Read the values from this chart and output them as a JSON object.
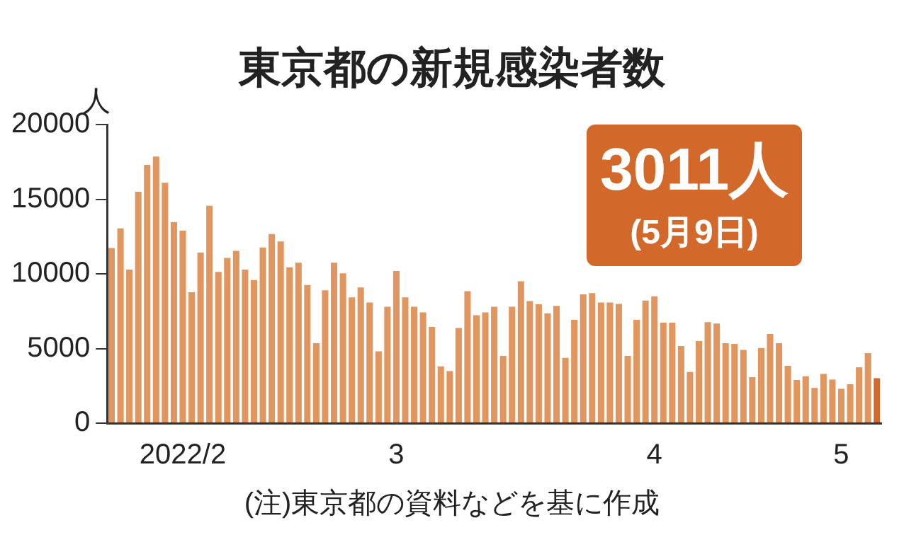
{
  "chart_data": {
    "type": "bar",
    "title": "東京都の新規感染者数",
    "ylabel": "人",
    "categories": [
      null,
      null,
      null,
      null,
      null,
      null,
      null,
      null,
      "2022/2",
      null,
      null,
      null,
      null,
      null,
      null,
      null,
      null,
      null,
      null,
      null,
      null,
      null,
      null,
      null,
      null,
      null,
      null,
      null,
      null,
      null,
      null,
      null,
      "3",
      null,
      null,
      null,
      null,
      null,
      null,
      null,
      null,
      null,
      null,
      null,
      null,
      null,
      null,
      null,
      null,
      null,
      null,
      null,
      null,
      null,
      null,
      null,
      null,
      null,
      null,
      null,
      null,
      "4",
      null,
      null,
      null,
      null,
      null,
      null,
      null,
      null,
      null,
      null,
      null,
      null,
      null,
      null,
      null,
      null,
      null,
      null,
      null,
      null,
      "5",
      null,
      null,
      null,
      null
    ],
    "values": [
      11730,
      13050,
      10280,
      15500,
      17300,
      17860,
      16100,
      13460,
      12890,
      8770,
      11420,
      14560,
      10130,
      11070,
      11540,
      10280,
      9590,
      11760,
      12670,
      12170,
      10440,
      10750,
      9250,
      5350,
      8900,
      10750,
      10030,
      8430,
      9090,
      8080,
      4810,
      7800,
      10190,
      8430,
      7800,
      7420,
      6450,
      3800,
      3490,
      6380,
      8840,
      7230,
      7420,
      7800,
      4500,
      7800,
      9500,
      8180,
      7960,
      7360,
      7860,
      4370,
      6920,
      8620,
      8710,
      8080,
      8080,
      7990,
      4500,
      6920,
      8210,
      8490,
      6730,
      6730,
      5160,
      3430,
      5500,
      6760,
      6670,
      5350,
      5310,
      4910,
      3080,
      5030,
      5970,
      5350,
      3840,
      2890,
      3140,
      2360,
      3300,
      2920,
      2300,
      2610,
      3740,
      4690,
      3011
    ],
    "colors": [
      "#e0965e",
      "#e0965e",
      "#e0965e",
      "#e0965e",
      "#e0965e",
      "#e0965e",
      "#e0965e",
      "#e0965e",
      "#e0965e",
      "#e0965e",
      "#e0965e",
      "#e0965e",
      "#e0965e",
      "#e0965e",
      "#e0965e",
      "#e0965e",
      "#e0965e",
      "#e0965e",
      "#e0965e",
      "#e0965e",
      "#e0965e",
      "#e0965e",
      "#e0965e",
      "#e0965e",
      "#e0965e",
      "#e0965e",
      "#e0965e",
      "#e0965e",
      "#e0965e",
      "#e0965e",
      "#e0965e",
      "#e0965e",
      "#e0965e",
      "#e0965e",
      "#e0965e",
      "#e0965e",
      "#e0965e",
      "#e0965e",
      "#e0965e",
      "#e0965e",
      "#e0965e",
      "#e0965e",
      "#e0965e",
      "#e0965e",
      "#e0965e",
      "#e0965e",
      "#e0965e",
      "#e0965e",
      "#e0965e",
      "#e0965e",
      "#e0965e",
      "#e0965e",
      "#e0965e",
      "#e0965e",
      "#e0965e",
      "#e0965e",
      "#e0965e",
      "#e0965e",
      "#e0965e",
      "#e0965e",
      "#e0965e",
      "#e0965e",
      "#e0965e",
      "#e0965e",
      "#e0965e",
      "#e0965e",
      "#e0965e",
      "#e0965e",
      "#e0965e",
      "#e0965e",
      "#e0965e",
      "#e0965e",
      "#e0965e",
      "#e0965e",
      "#e0965e",
      "#e0965e",
      "#e0965e",
      "#e0965e",
      "#e0965e",
      "#e0965e",
      "#e0965e",
      "#e0965e",
      "#e0965e",
      "#e0965e",
      "#e0965e",
      "#e0965e",
      "#d2692a"
    ],
    "ylim": [
      0,
      20000
    ],
    "yticks": [
      0,
      5000,
      10000,
      15000,
      20000
    ],
    "grid": false,
    "annotations": [
      "3011人",
      "(5月9日)",
      "(注)東京都の資料などを基に作成"
    ]
  }
}
